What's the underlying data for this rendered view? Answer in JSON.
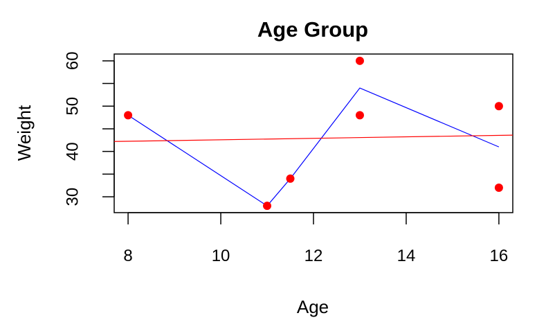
{
  "chart_data": {
    "type": "scatter",
    "title": "Age Group",
    "xlabel": "Age",
    "ylabel": "Weight",
    "xlim": [
      7.7,
      16.3
    ],
    "ylim": [
      26.5,
      61.5
    ],
    "xticks": [
      8,
      10,
      12,
      14,
      16
    ],
    "yticks": [
      30,
      40,
      50,
      60
    ],
    "grid": false,
    "colors": {
      "points": "#ff0000",
      "mean_line": "#0000ff",
      "fit_line": "#ff0000",
      "axes": "#000000"
    },
    "points": [
      {
        "x": 8,
        "y": 48
      },
      {
        "x": 11,
        "y": 28
      },
      {
        "x": 11.5,
        "y": 34
      },
      {
        "x": 13,
        "y": 60
      },
      {
        "x": 13,
        "y": 48
      },
      {
        "x": 16,
        "y": 50
      },
      {
        "x": 16,
        "y": 32
      }
    ],
    "series": [
      {
        "type": "line",
        "color": "#0000ff",
        "x": [
          8,
          11,
          11.5,
          13,
          16
        ],
        "y": [
          48,
          28,
          34,
          54,
          41
        ]
      },
      {
        "type": "line",
        "color": "#ff0000",
        "x": [
          7.7,
          16.3
        ],
        "y": [
          42.2,
          43.6
        ]
      }
    ]
  }
}
